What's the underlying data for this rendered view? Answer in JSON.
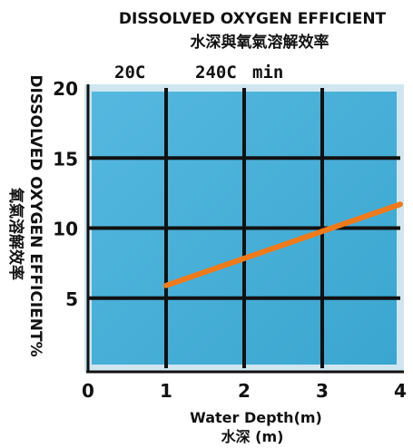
{
  "chart_data": {
    "type": "line",
    "title": "DISSOLVED OXYGEN EFFICIENT",
    "subtitle": "水深與氧氣溶解效率",
    "top_labels": [
      "20C",
      "240C",
      "min"
    ],
    "xlabel": "Water Depth(m)",
    "xlabel_sub": "水深 (m)",
    "ylabel": "DISSOLVED OXYGEN EFFICIENT%",
    "ylabel_sub": "氧氣溶解效率",
    "xlim": [
      0,
      4
    ],
    "ylim": [
      0,
      20
    ],
    "x_ticks": [
      "0",
      "1",
      "2",
      "3",
      "4"
    ],
    "y_ticks": [
      "5",
      "10",
      "15",
      "20"
    ],
    "grid": true,
    "series": [
      {
        "x": [
          1,
          4
        ],
        "y": [
          5.9,
          11.7
        ]
      }
    ],
    "colors": {
      "plot_bg": "#3aa6d0",
      "plot_bg_light": "#55b8df",
      "plot_border": "#cfe6f0",
      "grid": "#111111",
      "line": "#f07a1a"
    }
  }
}
